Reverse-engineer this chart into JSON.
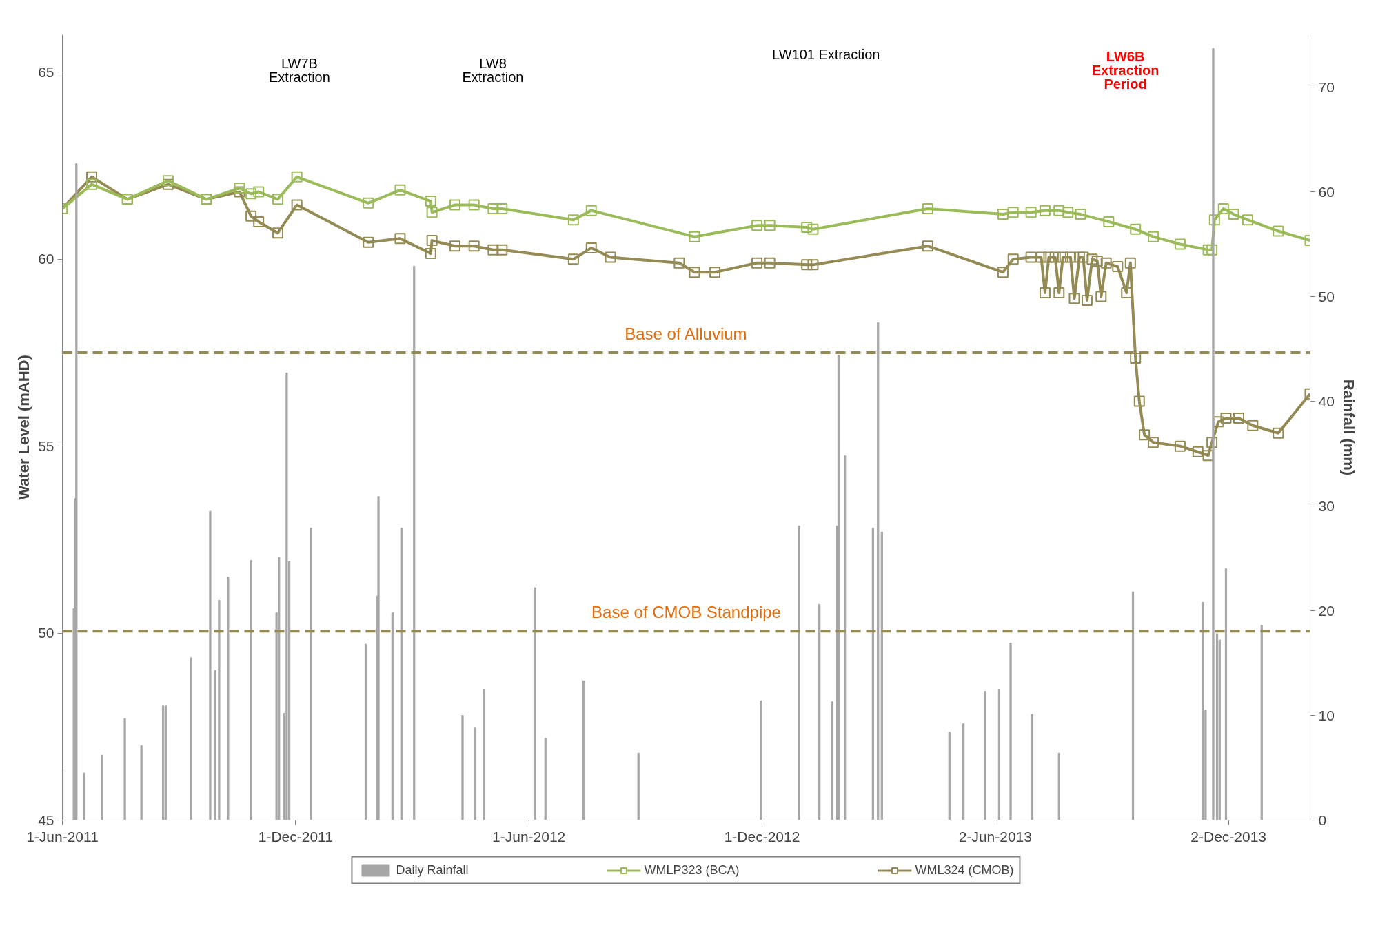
{
  "chart_data": {
    "type": "line",
    "xlabel": null,
    "ylabel": "Water Level (mAHD)",
    "y2label": "Rainfall (mm)",
    "xlim": [
      "2011-06-01",
      "2014-02-04"
    ],
    "xticks": [
      {
        "value": "2011-06-01",
        "label": "1-Jun-2011"
      },
      {
        "value": "2011-12-01",
        "label": "1-Dec-2011"
      },
      {
        "value": "2012-06-01",
        "label": "1-Jun-2012"
      },
      {
        "value": "2012-12-01",
        "label": "1-Dec-2012"
      },
      {
        "value": "2013-06-02",
        "label": "2-Jun-2013"
      },
      {
        "value": "2013-12-02",
        "label": "2-Dec-2013"
      }
    ],
    "ylim": [
      45,
      66
    ],
    "yticks": [
      45,
      50,
      55,
      60,
      65
    ],
    "y2lim": [
      0,
      75
    ],
    "y2ticks": [
      0,
      10,
      20,
      30,
      40,
      50,
      60,
      70
    ],
    "grid": false,
    "legend": "bottom",
    "marker": "square",
    "line_style": "solid",
    "series": [
      {
        "name": "Daily Rainfall",
        "type": "bar",
        "axis": "y2",
        "color": "#a6a6a6",
        "x": [
          "2011-06-01",
          "2011-06-10",
          "2011-06-11",
          "2011-06-12",
          "2011-06-18",
          "2011-07-02",
          "2011-07-20",
          "2011-08-02",
          "2011-08-19",
          "2011-08-21",
          "2011-09-10",
          "2011-09-25",
          "2011-09-29",
          "2011-10-02",
          "2011-10-09",
          "2011-10-27",
          "2011-11-16",
          "2011-11-18",
          "2011-11-22",
          "2011-11-24",
          "2011-11-26",
          "2011-12-13",
          "2012-01-25",
          "2012-02-03",
          "2012-02-04",
          "2012-02-15",
          "2012-02-22",
          "2012-03-03",
          "2012-04-10",
          "2012-04-20",
          "2012-04-27",
          "2012-06-06",
          "2012-06-14",
          "2012-07-14",
          "2012-08-26",
          "2012-11-30",
          "2012-12-30",
          "2013-01-15",
          "2013-01-25",
          "2013-01-29",
          "2013-01-30",
          "2013-02-04",
          "2013-02-26",
          "2013-03-02",
          "2013-03-05",
          "2013-04-27",
          "2013-05-08",
          "2013-05-25",
          "2013-06-05",
          "2013-06-14",
          "2013-07-01",
          "2013-07-22",
          "2013-09-18",
          "2013-11-12",
          "2013-11-14",
          "2013-11-20",
          "2013-11-23",
          "2013-11-25",
          "2013-11-30",
          "2013-12-28"
        ],
        "values": [
          4.8,
          20.2,
          30.7,
          62.7,
          4.5,
          6.2,
          9.7,
          7.1,
          10.9,
          10.9,
          15.5,
          29.5,
          14.3,
          21.0,
          23.2,
          24.8,
          19.8,
          25.1,
          10.2,
          42.7,
          24.7,
          27.9,
          16.8,
          21.4,
          30.9,
          19.8,
          27.9,
          52.9,
          10.0,
          8.8,
          12.5,
          22.2,
          7.8,
          13.3,
          6.4,
          11.4,
          28.1,
          20.6,
          11.3,
          28.1,
          44.4,
          34.8,
          27.9,
          47.5,
          27.5,
          8.4,
          9.2,
          12.3,
          12.5,
          16.9,
          10.1,
          6.4,
          21.8,
          20.8,
          10.5,
          73.7,
          17.8,
          17.2,
          24.0,
          18.6
        ]
      },
      {
        "name": "WMLP323 (BCA)",
        "color": "#9bbb59",
        "x": [
          "2011-06-01",
          "2011-06-24",
          "2011-07-22",
          "2011-08-23",
          "2011-09-22",
          "2011-10-18",
          "2011-10-27",
          "2011-11-02",
          "2011-11-17",
          "2011-12-02",
          "2012-01-27",
          "2012-02-21",
          "2012-03-16",
          "2012-03-17",
          "2012-04-04",
          "2012-04-19",
          "2012-05-04",
          "2012-05-11",
          "2012-07-06",
          "2012-07-20",
          "2012-10-09",
          "2012-11-27",
          "2012-12-07",
          "2013-01-05",
          "2013-01-10",
          "2013-04-10",
          "2013-06-08",
          "2013-06-16",
          "2013-06-30",
          "2013-07-11",
          "2013-07-22",
          "2013-07-29",
          "2013-08-08",
          "2013-08-30",
          "2013-09-20",
          "2013-10-04",
          "2013-10-25",
          "2013-11-16",
          "2013-11-19",
          "2013-11-21",
          "2013-11-28",
          "2013-12-06",
          "2013-12-17",
          "2014-01-10",
          "2014-02-04"
        ],
        "values": [
          61.35,
          62.0,
          61.6,
          62.1,
          61.6,
          61.9,
          61.75,
          61.8,
          61.6,
          62.2,
          61.5,
          61.85,
          61.55,
          61.25,
          61.45,
          61.45,
          61.35,
          61.35,
          61.05,
          61.3,
          60.6,
          60.9,
          60.9,
          60.85,
          60.8,
          61.35,
          61.2,
          61.25,
          61.25,
          61.3,
          61.3,
          61.25,
          61.2,
          61.0,
          60.8,
          60.6,
          60.4,
          60.25,
          60.25,
          61.05,
          61.35,
          61.2,
          61.05,
          60.75,
          60.5
        ]
      },
      {
        "name": "WML324 (CMOB)",
        "color": "#948a54",
        "x": [
          "2011-06-01",
          "2011-06-24",
          "2011-07-22",
          "2011-08-23",
          "2011-09-22",
          "2011-10-18",
          "2011-10-27",
          "2011-11-02",
          "2011-11-17",
          "2011-12-02",
          "2012-01-27",
          "2012-02-21",
          "2012-03-16",
          "2012-03-17",
          "2012-04-04",
          "2012-04-19",
          "2012-05-04",
          "2012-05-11",
          "2012-07-06",
          "2012-07-20",
          "2012-08-04",
          "2012-09-27",
          "2012-10-09",
          "2012-10-25",
          "2012-11-27",
          "2012-12-07",
          "2013-01-05",
          "2013-01-10",
          "2013-04-10",
          "2013-06-08",
          "2013-06-16",
          "2013-06-30",
          "2013-07-08",
          "2013-07-11",
          "2013-07-14",
          "2013-07-19",
          "2013-07-22",
          "2013-07-25",
          "2013-07-31",
          "2013-08-03",
          "2013-08-07",
          "2013-08-10",
          "2013-08-13",
          "2013-08-17",
          "2013-08-21",
          "2013-08-24",
          "2013-08-28",
          "2013-09-06",
          "2013-09-13",
          "2013-09-16",
          "2013-09-20",
          "2013-09-23",
          "2013-09-27",
          "2013-10-04",
          "2013-10-25",
          "2013-11-08",
          "2013-11-16",
          "2013-11-19",
          "2013-11-24",
          "2013-11-30",
          "2013-12-10",
          "2013-12-21",
          "2014-01-10",
          "2014-02-04"
        ],
        "values": [
          61.35,
          62.2,
          61.6,
          62.0,
          61.6,
          61.8,
          61.15,
          61.0,
          60.7,
          61.45,
          60.45,
          60.55,
          60.15,
          60.5,
          60.35,
          60.35,
          60.25,
          60.25,
          60.0,
          60.3,
          60.05,
          59.9,
          59.65,
          59.65,
          59.9,
          59.9,
          59.85,
          59.85,
          60.35,
          59.65,
          60.0,
          60.05,
          60.05,
          59.1,
          60.05,
          60.05,
          59.1,
          60.05,
          60.05,
          58.95,
          60.05,
          60.05,
          58.9,
          60.0,
          59.95,
          59.0,
          59.9,
          59.8,
          59.1,
          59.9,
          57.35,
          56.2,
          55.3,
          55.1,
          55.0,
          54.85,
          54.75,
          55.1,
          55.65,
          55.75,
          55.75,
          55.55,
          55.35,
          56.4
        ]
      }
    ],
    "ref_lines": [
      {
        "axis": "y",
        "value": 57.5,
        "label": "Base of Alluvium",
        "color": "#948a54",
        "line_style": "dashed"
      },
      {
        "axis": "y",
        "value": 50.05,
        "label": "Base of CMOB Standpipe",
        "color": "#948a54",
        "line_style": "dashed"
      }
    ],
    "annotations": [
      "LW7B\nExtraction",
      "LW8\nExtraction",
      "LW101 Extraction",
      "LW6B\nExtraction\nPeriod"
    ]
  }
}
